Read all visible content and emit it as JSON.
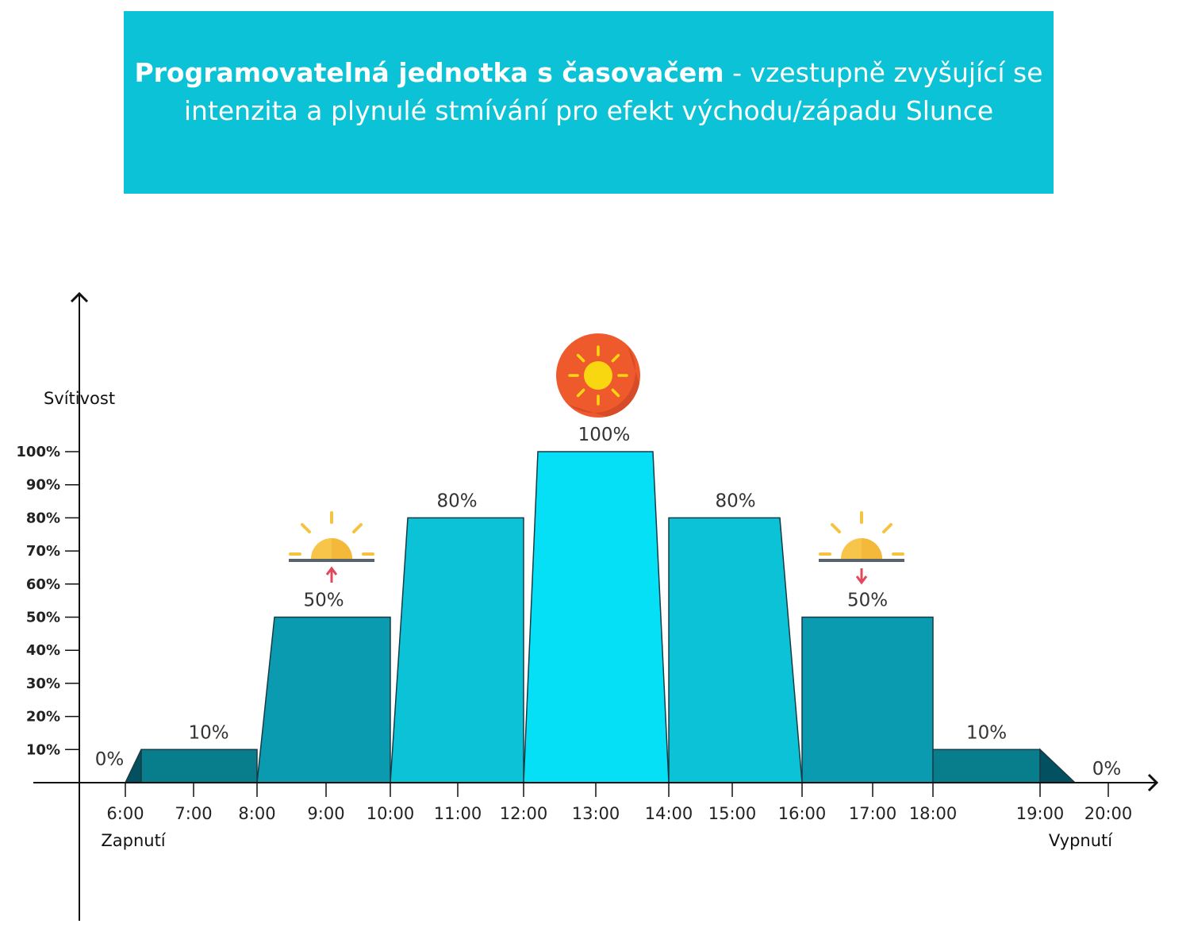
{
  "title_bold": "Programovatelná jednotka s časovačem",
  "title_rest": " - vzestupně zvyšující se intenzita a plynulé stmívání pro efekt východu/západu Slunce",
  "chart_data": {
    "type": "area",
    "ylabel": "Svítivost",
    "y_ticks": [
      "10%",
      "20%",
      "30%",
      "40%",
      "50%",
      "60%",
      "70%",
      "80%",
      "90%",
      "100%"
    ],
    "ylim": [
      0,
      100
    ],
    "x_ticks": [
      "6:00",
      "7:00",
      "8:00",
      "9:00",
      "10:00",
      "11:00",
      "12:00",
      "13:00",
      "14:00",
      "15:00",
      "16:00",
      "17:00",
      "18:00",
      "19:00",
      "20:00"
    ],
    "x_start_label": "Zapnutí",
    "x_end_label": "Vypnutí",
    "segments": [
      {
        "start": "6:00",
        "end": "7:00",
        "label": "0%",
        "value": 0,
        "color": "#035160"
      },
      {
        "start": "7:00",
        "end": "8:00",
        "label": "10%",
        "value": 10,
        "color": "#087d8c"
      },
      {
        "start": "8:00",
        "end": "10:00",
        "label": "50%",
        "value": 50,
        "color": "#0a9bb0"
      },
      {
        "start": "10:00",
        "end": "12:00",
        "label": "80%",
        "value": 80,
        "color": "#0bc2d6"
      },
      {
        "start": "12:00",
        "end": "14:00",
        "label": "100%",
        "value": 100,
        "color": "#05e0f7"
      },
      {
        "start": "14:00",
        "end": "16:00",
        "label": "80%",
        "value": 80,
        "color": "#0bc2d6"
      },
      {
        "start": "16:00",
        "end": "18:00",
        "label": "50%",
        "value": 50,
        "color": "#0a9bb0"
      },
      {
        "start": "18:00",
        "end": "19:00",
        "label": "10%",
        "value": 10,
        "color": "#087d8c"
      },
      {
        "start": "19:00",
        "end": "20:00",
        "label": "0%",
        "value": 0,
        "color": "#035160"
      }
    ],
    "icons": [
      {
        "name": "sunrise-icon",
        "segment": 2
      },
      {
        "name": "sun-icon",
        "segment": 4
      },
      {
        "name": "sunset-icon",
        "segment": 6
      }
    ]
  }
}
